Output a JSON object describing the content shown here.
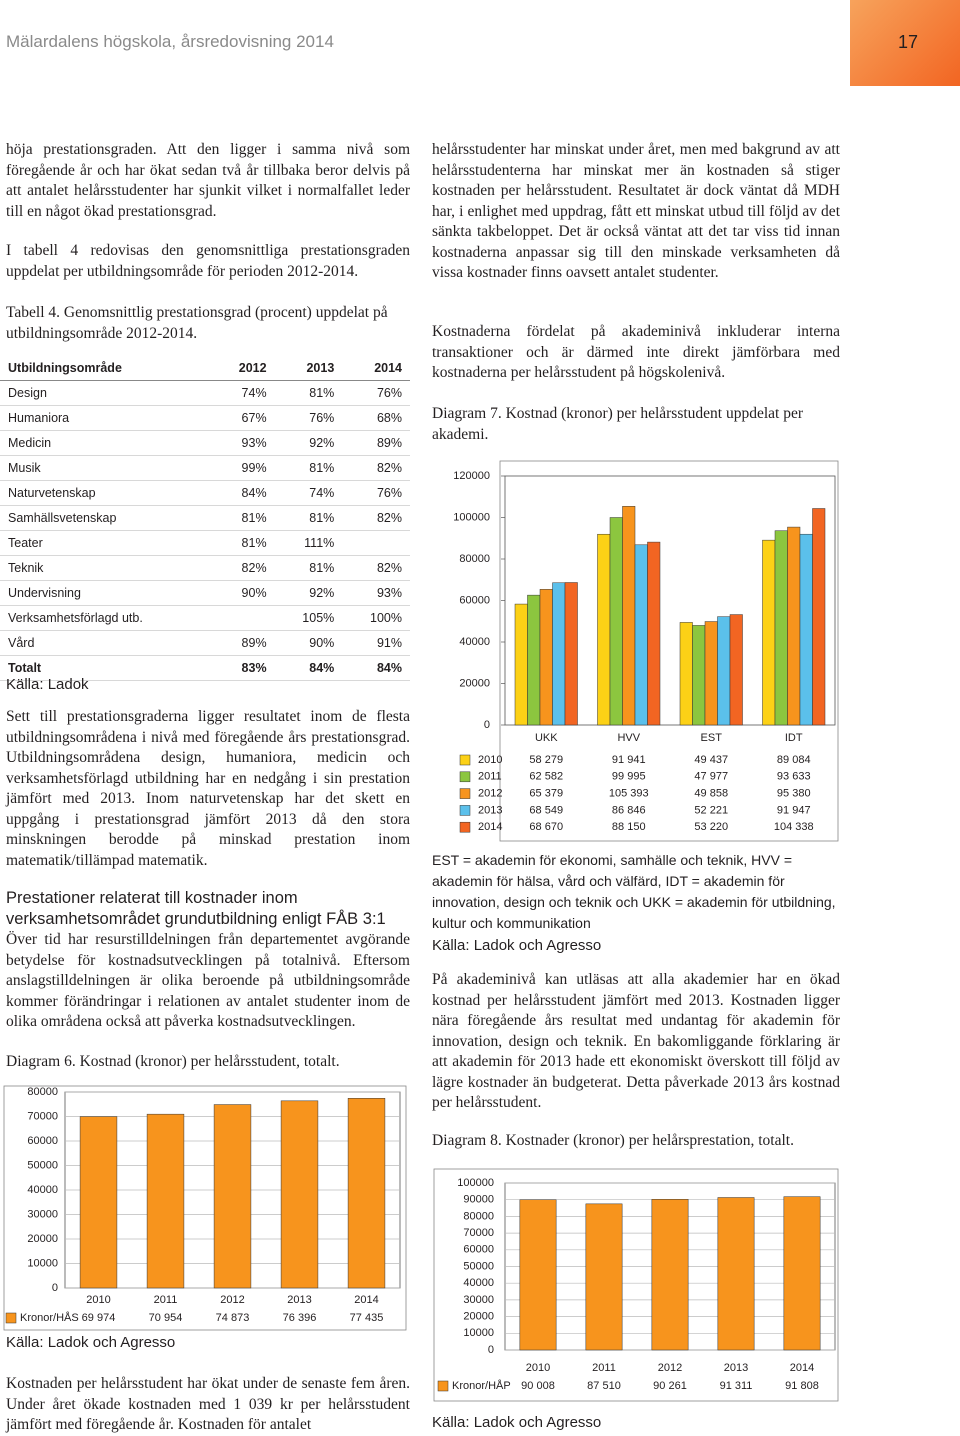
{
  "header": {
    "title": "Mälardalens högskola, årsredovisning 2014",
    "page": "17"
  },
  "left": {
    "p1": "höja prestationsgraden. Att den ligger i samma nivå som föregående år och har ökat sedan två år tillbaka beror delvis på att antalet helårsstudenter har sjunkit vilket i normalfallet leder till en något ökad prestationsgrad.",
    "p2": "I tabell 4 redovisas den genomsnittliga prestationsgraden uppdelat per utbildningsområde för perioden 2012-2014.",
    "table_caption": "Tabell 4. Genomsnittlig prestationsgrad (procent) uppdelat på utbildningsområde 2012-2014.",
    "table": {
      "header": [
        "Utbildningsområde",
        "2012",
        "2013",
        "2014"
      ],
      "rows": [
        [
          "Design",
          "74%",
          "81%",
          "76%"
        ],
        [
          "Humaniora",
          "67%",
          "76%",
          "68%"
        ],
        [
          "Medicin",
          "93%",
          "92%",
          "89%"
        ],
        [
          "Musik",
          "99%",
          "81%",
          "82%"
        ],
        [
          "Naturvetenskap",
          "84%",
          "74%",
          "76%"
        ],
        [
          "Samhällsvetenskap",
          "81%",
          "81%",
          "82%"
        ],
        [
          "Teater",
          "81%",
          "111%",
          null
        ],
        [
          "Teknik",
          "82%",
          "81%",
          "82%"
        ],
        [
          "Undervisning",
          "90%",
          "92%",
          "93%"
        ],
        [
          "Verksamhetsförlagd utb.",
          null,
          "105%",
          "100%"
        ],
        [
          "Vård",
          "89%",
          "90%",
          "91%"
        ],
        [
          "Totalt",
          "83%",
          "84%",
          "84%"
        ]
      ],
      "source": "Källa: Ladok"
    },
    "p3": "Sett till prestationsgraderna ligger resultatet inom de flesta utbildningsområdena i nivå med föregående års prestationsgrad. Utbildningsområdena design, humaniora, medicin och verksamhetsförlagd utbildning har en nedgång i sin prestation jämfört med 2013. Inom naturvetenskap har det skett en uppgång i prestationsgrad jämfört 2013 då den stora minskningen berodde på minskad prestation inom matematik/tillämpad matematik.",
    "heading": "Prestationer relaterat till kostnader inom verksamhetsområdet grundutbildning enligt FÅB 3:1",
    "p4": "Över tid har resurstilldelningen från departementet avgörande betydelse för kostnadsutvecklingen på totalnivå. Eftersom anslagstilldelningen är olika beroende på utbildningsområde kommer förändringar i relationen av antalet studenter inom de olika områdena också att påverka kostnadsutvecklingen.",
    "p5": "Kostnaden per helårsstudent har ökat under de senaste fem åren. Under året ökade kostnaden med 1 039 kr per helårsstudent jämfört med föregående år. Kostnaden för antalet"
  },
  "right": {
    "p1": "helårsstudenter har minskat under året, men med bakgrund av att helårsstudenterna har minskat mer än kostnaden så stiger kostnaden per helårsstudent. Resultatet är dock väntat då MDH har, i enlighet med uppdrag, fått ett minskat utbud till följd av det sänkta takbeloppet. Det är också väntat att det tar viss tid innan kostnaderna anpassar sig till den minskade verksamheten då vissa kostnader finns oavsett antalet studenter.",
    "p2": "Kostnaderna fördelat på akademinivå inkluderar interna transaktioner och är därmed inte direkt jämförbara med kostnaderna per helårsstudent på högskolenivå.",
    "note": "EST = akademin för ekonomi, samhälle och teknik, HVV = akademin för hälsa, vård och välfärd, IDT = akademin för innovation, design och teknik och UKK = akademin för utbildning, kultur och kommunikation",
    "p3": "På akademinivå kan utläsas att alla akademier har en ökad kostnad per helårsstudent jämfört med 2013. Kostnaden ligger nära föregående års resultat med undantag för akademin för innovation, design och teknik. En bakomliggande förklaring är att akademin för 2013 hade ett ekonomiskt överskott till följd av lägre kostnader än budgeterat. Detta påverkade 2013 års kostnad per helårsstudent."
  },
  "chart_data": [
    {
      "type": "bar",
      "title": "Diagram 6. Kostnad (kronor) per helårsstudent, totalt.",
      "source": "Källa: Ladok och Agresso",
      "categories": [
        "2010",
        "2011",
        "2012",
        "2013",
        "2014"
      ],
      "series": [
        {
          "name": "Kronor/HÅS",
          "color": "#f7941d",
          "values": [
            69974,
            70954,
            74873,
            76396,
            77435
          ],
          "value_labels": [
            "69 974",
            "70 954",
            "74 873",
            "76 396",
            "77 435"
          ]
        }
      ],
      "ylim": [
        0,
        80000
      ],
      "yticks": [
        0,
        10000,
        20000,
        30000,
        40000,
        50000,
        60000,
        70000,
        80000
      ],
      "grid": true
    },
    {
      "type": "bar",
      "title": "Diagram 7. Kostnad (kronor) per helårsstudent uppdelat per akademi.",
      "source": "Källa: Ladok och Agresso",
      "categories": [
        "UKK",
        "HVV",
        "EST",
        "IDT"
      ],
      "series": [
        {
          "name": "2010",
          "color": "#fcd116",
          "values": [
            58279,
            91941,
            49437,
            89084
          ],
          "value_labels": [
            "58 279",
            "91 941",
            "49 437",
            "89 084"
          ]
        },
        {
          "name": "2011",
          "color": "#8cc63f",
          "values": [
            62582,
            99995,
            47977,
            93633
          ],
          "value_labels": [
            "62 582",
            "99 995",
            "47 977",
            "93 633"
          ]
        },
        {
          "name": "2012",
          "color": "#f7941d",
          "values": [
            65379,
            105393,
            49858,
            95380
          ],
          "value_labels": [
            "65 379",
            "105 393",
            "49 858",
            "95 380"
          ]
        },
        {
          "name": "2013",
          "color": "#5bc0eb",
          "values": [
            68549,
            86846,
            52221,
            91947
          ],
          "value_labels": [
            "68 549",
            "86 846",
            "52 221",
            "91 947"
          ]
        },
        {
          "name": "2014",
          "color": "#f26522",
          "values": [
            68670,
            88150,
            53220,
            104338
          ],
          "value_labels": [
            "68 670",
            "88 150",
            "53 220",
            "104 338"
          ]
        }
      ],
      "ylim": [
        0,
        120000
      ],
      "yticks": [
        0,
        20000,
        40000,
        60000,
        80000,
        100000,
        120000
      ],
      "grid": false
    },
    {
      "type": "bar",
      "title": "Diagram 8. Kostnader (kronor) per helårsprestation, totalt.",
      "source": "Källa: Ladok och Agresso",
      "categories": [
        "2010",
        "2011",
        "2012",
        "2013",
        "2014"
      ],
      "series": [
        {
          "name": "Kronor/HÅP",
          "color": "#f7941d",
          "values": [
            90008,
            87510,
            90261,
            91311,
            91808
          ],
          "value_labels": [
            "90 008",
            "87 510",
            "90 261",
            "91 311",
            "91 808"
          ]
        }
      ],
      "ylim": [
        0,
        100000
      ],
      "yticks": [
        0,
        10000,
        20000,
        30000,
        40000,
        50000,
        60000,
        70000,
        80000,
        90000,
        100000
      ],
      "grid": true
    }
  ]
}
